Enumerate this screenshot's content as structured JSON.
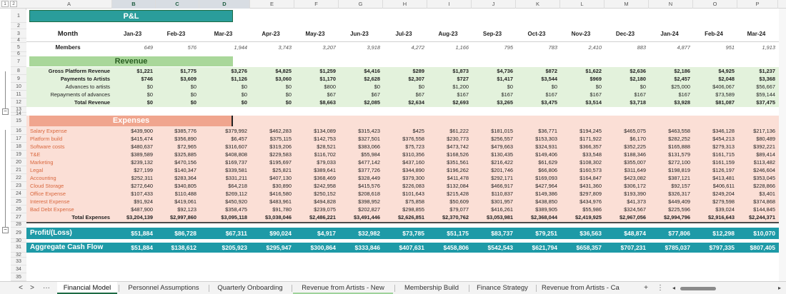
{
  "columns": [
    "A",
    "B",
    "C",
    "D",
    "E",
    "F",
    "G",
    "H",
    "I",
    "J",
    "K",
    "L",
    "M",
    "N",
    "O",
    "P"
  ],
  "outline_levels": [
    "1",
    "2"
  ],
  "title": "P&L",
  "month_label": "Month",
  "months": [
    "Jan-23",
    "Feb-23",
    "Mar-23",
    "Apr-23",
    "May-23",
    "Jun-23",
    "Jul-23",
    "Aug-23",
    "Sep-23",
    "Oct-23",
    "Nov-23",
    "Dec-23",
    "Jan-24",
    "Feb-24",
    "Mar-24"
  ],
  "members_label": "Members",
  "members": [
    "649",
    "576",
    "1,944",
    "3,743",
    "3,207",
    "3,918",
    "4,272",
    "1,166",
    "795",
    "783",
    "2,410",
    "883",
    "4,877",
    "951",
    "1,913"
  ],
  "revenue_title": "Revenue",
  "revenue_rows": [
    {
      "label": "Gross Platform Revenue",
      "values": [
        "$1,221",
        "$1,775",
        "$3,276",
        "$4,825",
        "$1,259",
        "$4,416",
        "$289",
        "$1,873",
        "$4,736",
        "$872",
        "$1,622",
        "$2,636",
        "$2,186",
        "$4,925",
        "$1,237"
      ]
    },
    {
      "label": "Payments to Artists",
      "values": [
        "$746",
        "$3,609",
        "$1,126",
        "$3,060",
        "$1,170",
        "$2,628",
        "$2,307",
        "$727",
        "$1,417",
        "$3,544",
        "$969",
        "$2,180",
        "$2,457",
        "$2,048",
        "$3,368"
      ]
    },
    {
      "label": "Advances to artists",
      "values": [
        "$0",
        "$0",
        "$0",
        "$0",
        "$800",
        "$0",
        "$0",
        "$1,200",
        "$0",
        "$0",
        "$0",
        "$0",
        "$25,000",
        "$406,067",
        "$56,667"
      ]
    },
    {
      "label": "Repayments of advances",
      "values": [
        "$0",
        "$0",
        "$0",
        "$0",
        "$67",
        "$67",
        "$67",
        "$167",
        "$167",
        "$167",
        "$167",
        "$167",
        "$167",
        "$73,589",
        "$59,144"
      ]
    },
    {
      "label": "Total Revenue",
      "values": [
        "$0",
        "$0",
        "$0",
        "$0",
        "$8,663",
        "$2,085",
        "$2,634",
        "$2,693",
        "$3,265",
        "$3,475",
        "$3,514",
        "$3,718",
        "$3,928",
        "$81,087",
        "$37,475"
      ]
    }
  ],
  "expenses_title": "Expenses",
  "expense_rows": [
    {
      "label": "Salary Expense",
      "values": [
        "$439,900",
        "$385,776",
        "$379,992",
        "$462,283",
        "$134,089",
        "$315,423",
        "$425",
        "$61,222",
        "$181,015",
        "$36,771",
        "$194,245",
        "$465,075",
        "$463,558",
        "$346,128",
        "$217,136"
      ]
    },
    {
      "label": "Platform build",
      "values": [
        "$415,474",
        "$356,890",
        "$6,457",
        "$375,115",
        "$142,753",
        "$327,501",
        "$376,558",
        "$230,773",
        "$256,557",
        "$153,303",
        "$171,922",
        "$6,170",
        "$282,252",
        "$454,213",
        "$80,489"
      ]
    },
    {
      "label": "Software costs",
      "values": [
        "$480,637",
        "$72,965",
        "$316,607",
        "$319,206",
        "$28,521",
        "$383,066",
        "$75,723",
        "$473,742",
        "$479,663",
        "$324,931",
        "$366,357",
        "$352,225",
        "$165,888",
        "$279,313",
        "$392,221"
      ]
    },
    {
      "label": "T&E",
      "values": [
        "$389,589",
        "$325,885",
        "$408,808",
        "$229,583",
        "$116,702",
        "$55,984",
        "$310,356",
        "$168,526",
        "$130,435",
        "$149,406",
        "$33,548",
        "$188,346",
        "$131,579",
        "$161,715",
        "$89,414"
      ]
    },
    {
      "label": "Marketing",
      "values": [
        "$239,132",
        "$470,156",
        "$169,737",
        "$195,697",
        "$79,033",
        "$477,142",
        "$437,160",
        "$351,561",
        "$216,422",
        "$61,629",
        "$108,302",
        "$355,007",
        "$272,100",
        "$161,159",
        "$113,482"
      ]
    },
    {
      "label": "Legal",
      "values": [
        "$27,199",
        "$140,347",
        "$339,581",
        "$25,821",
        "$389,641",
        "$377,726",
        "$344,890",
        "$196,262",
        "$201,746",
        "$66,806",
        "$160,573",
        "$311,649",
        "$198,819",
        "$126,197",
        "$246,604"
      ]
    },
    {
      "label": "Accounting",
      "values": [
        "$252,311",
        "$283,364",
        "$331,211",
        "$407,130",
        "$368,469",
        "$328,449",
        "$379,300",
        "$411,478",
        "$292,171",
        "$169,093",
        "$164,847",
        "$423,082",
        "$387,121",
        "$413,481",
        "$353,045"
      ]
    },
    {
      "label": "Cloud Storage",
      "values": [
        "$272,640",
        "$340,805",
        "$64,218",
        "$30,890",
        "$242,958",
        "$415,576",
        "$226,083",
        "$132,084",
        "$466,917",
        "$427,964",
        "$431,360",
        "$306,172",
        "$92,157",
        "$406,611",
        "$228,866"
      ]
    },
    {
      "label": "Office Expense",
      "values": [
        "$107,433",
        "$110,488",
        "$269,112",
        "$416,580",
        "$250,152",
        "$208,618",
        "$101,643",
        "$215,428",
        "$110,837",
        "$149,386",
        "$297,809",
        "$193,390",
        "$326,317",
        "$249,204",
        "$3,401"
      ]
    },
    {
      "label": "Interest Expense",
      "values": [
        "$91,924",
        "$419,061",
        "$450,920",
        "$483,961",
        "$494,828",
        "$398,952",
        "$75,858",
        "$50,609",
        "$301,957",
        "$438,850",
        "$434,976",
        "$41,373",
        "$449,409",
        "$279,598",
        "$374,868"
      ]
    },
    {
      "label": "Bad Debt Expense",
      "values": [
        "$487,900",
        "$92,123",
        "$358,475",
        "$91,780",
        "$239,075",
        "$202,827",
        "$298,855",
        "$79,077",
        "$416,261",
        "$389,905",
        "$55,986",
        "$324,567",
        "$225,596",
        "$39,024",
        "$144,845"
      ]
    }
  ],
  "total_expenses": {
    "label": "Total Expenses",
    "values": [
      "$3,204,139",
      "$2,997,860",
      "$3,095,118",
      "$3,038,046",
      "$2,486,221",
      "$3,491,446",
      "$2,626,851",
      "$2,370,762",
      "$3,053,981",
      "$2,368,044",
      "$2,419,925",
      "$2,967,056",
      "$2,994,796",
      "$2,916,643",
      "$2,244,371"
    ]
  },
  "profit": {
    "label": "Profit/(Loss)",
    "values": [
      "$51,884",
      "$86,728",
      "$67,311",
      "$90,024",
      "$4,917",
      "$32,982",
      "$73,785",
      "$51,175",
      "$83,737",
      "$79,251",
      "$36,563",
      "$48,874",
      "$77,806",
      "$12,298",
      "$10,070"
    ]
  },
  "cashflow": {
    "label": "Aggregate Cash Flow",
    "values": [
      "$51,884",
      "$138,612",
      "$205,923",
      "$295,947",
      "$300,864",
      "$333,846",
      "$407,631",
      "$458,806",
      "$542,543",
      "$621,794",
      "$658,357",
      "$707,231",
      "$785,037",
      "$797,335",
      "$807,405"
    ]
  },
  "tabs": [
    "Financial Model",
    "Personnel Assumptions",
    "Quarterly Onboarding",
    "Revenue from Artists - New",
    "Membership Build",
    "Finance Strategy",
    "Revenue from Artists - Ca"
  ],
  "tab_nav": {
    "prev": "<",
    "next": ">",
    "more": "···",
    "add": "+",
    "menu": "⋮"
  },
  "colors": {
    "title_bar": "#2a9d9b",
    "revenue_header": "#a9d79a",
    "revenue_band": "#e3f2dc",
    "expense_header": "#f0a58e",
    "expense_band": "#fbdfd6",
    "total_band": "#1e9aa7"
  }
}
